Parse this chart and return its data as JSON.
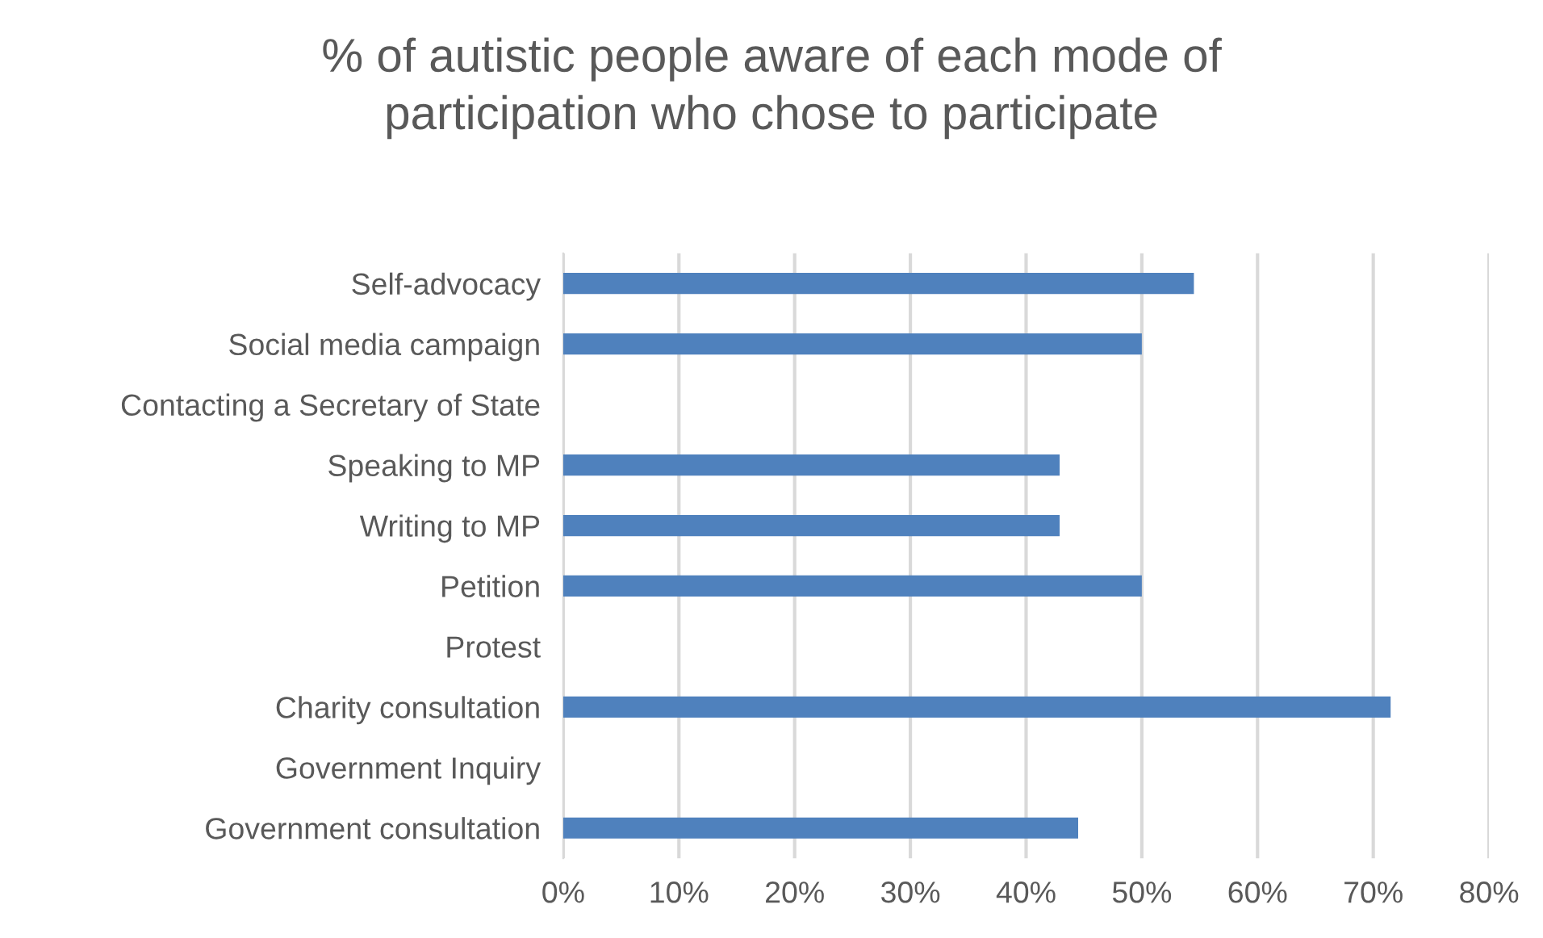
{
  "chart_data": {
    "type": "bar",
    "orientation": "horizontal",
    "title": "% of autistic people aware of each mode of\nparticipation who chose to participate",
    "categories": [
      "Self-advocacy",
      "Social media campaign",
      "Contacting a Secretary of State",
      "Speaking to MP",
      "Writing to MP",
      "Petition",
      "Protest",
      "Charity consultation",
      "Government Inquiry",
      "Government consultation"
    ],
    "values": [
      54.5,
      50,
      0,
      42.9,
      42.9,
      50,
      0,
      71.5,
      0,
      44.5
    ],
    "color": "#4f81bd",
    "xlim": [
      0,
      80
    ],
    "xticks": [
      {
        "value": 0,
        "label": "0%"
      },
      {
        "value": 10,
        "label": "10%"
      },
      {
        "value": 20,
        "label": "20%"
      },
      {
        "value": 30,
        "label": "30%"
      },
      {
        "value": 40,
        "label": "40%"
      },
      {
        "value": 50,
        "label": "50%"
      },
      {
        "value": 60,
        "label": "60%"
      },
      {
        "value": 70,
        "label": "70%"
      },
      {
        "value": 80,
        "label": "80%"
      }
    ],
    "grid": "x"
  }
}
